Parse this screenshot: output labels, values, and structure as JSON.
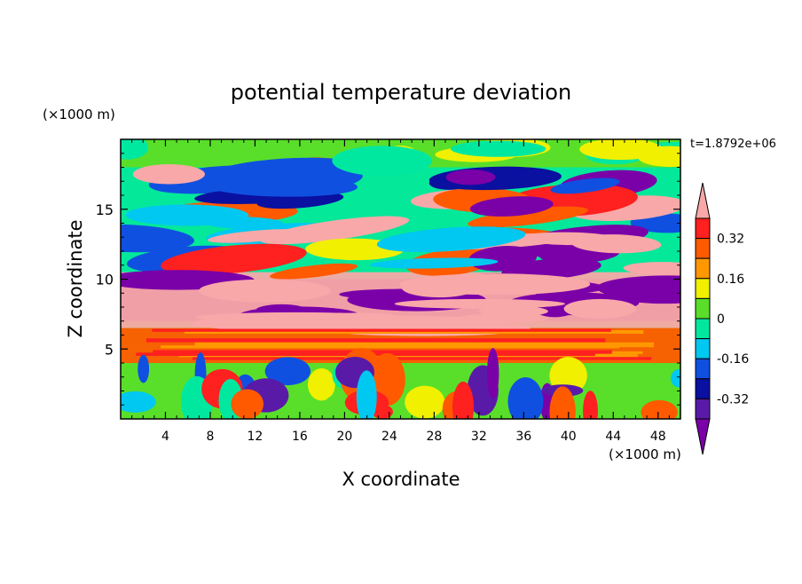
{
  "chart_data": {
    "type": "heatmap",
    "title": "potential temperature deviation",
    "xlabel": "X coordinate",
    "ylabel": "Z coordinate",
    "x_unit": "(×1000 m)",
    "y_unit": "(×1000 m)",
    "time_label": "t=1.8792e+06",
    "xlim": [
      0,
      50
    ],
    "ylim": [
      0,
      20
    ],
    "x_ticks": [
      4,
      8,
      12,
      16,
      20,
      24,
      28,
      32,
      36,
      40,
      44,
      48
    ],
    "y_ticks": [
      5,
      10,
      15
    ],
    "colorbar": {
      "levels": [
        "below -0.4",
        "-0.4 – -0.32",
        "-0.32 – -0.24",
        "-0.24 – -0.16",
        "-0.16 – -0.08",
        "-0.08 – 0",
        "0 – 0.08",
        "0.08 – 0.16",
        "0.16 – 0.24",
        "0.24 – 0.32",
        "0.32 – 0.4",
        "above 0.4"
      ],
      "colors": [
        "#7a00a8",
        "#5a1aa8",
        "#0a10a0",
        "#1050e0",
        "#00c8f0",
        "#00e8a0",
        "#5ade2a",
        "#f0f000",
        "#ff9800",
        "#ff5a00",
        "#ff2020",
        "#f8a8a8"
      ],
      "tick_labels": [
        "0.32",
        "0.16",
        "0",
        "-0.16",
        "-0.32"
      ],
      "tick_values": [
        0.32,
        0.16,
        0,
        -0.16,
        -0.32
      ]
    },
    "field_features": [
      {
        "name": "surface layer",
        "z_range": [
          0,
          4
        ],
        "value_range": [
          -0.3,
          0.3
        ],
        "dominant": "green/cyan with red and blue plumes"
      },
      {
        "name": "warm core",
        "z_range": [
          4,
          6.5
        ],
        "value": 0.35,
        "dominant": "red/orange"
      },
      {
        "name": "warm lower band",
        "z_range": [
          6.5,
          10.5
        ],
        "value": 0.45,
        "dominant": "pink"
      },
      {
        "name": "cold layer",
        "z_range": [
          7,
          10
        ],
        "value": -0.45,
        "dominant": "purple"
      },
      {
        "name": "banded upper layer",
        "z_range": [
          10,
          18
        ],
        "value_range": [
          -0.45,
          0.45
        ],
        "dominant": "alternating pink/red and purple/blue"
      },
      {
        "name": "top layer",
        "z_range": [
          18,
          20
        ],
        "value_range": [
          -0.05,
          0.1
        ],
        "dominant": "green"
      }
    ],
    "grid": false,
    "legend": "right"
  }
}
